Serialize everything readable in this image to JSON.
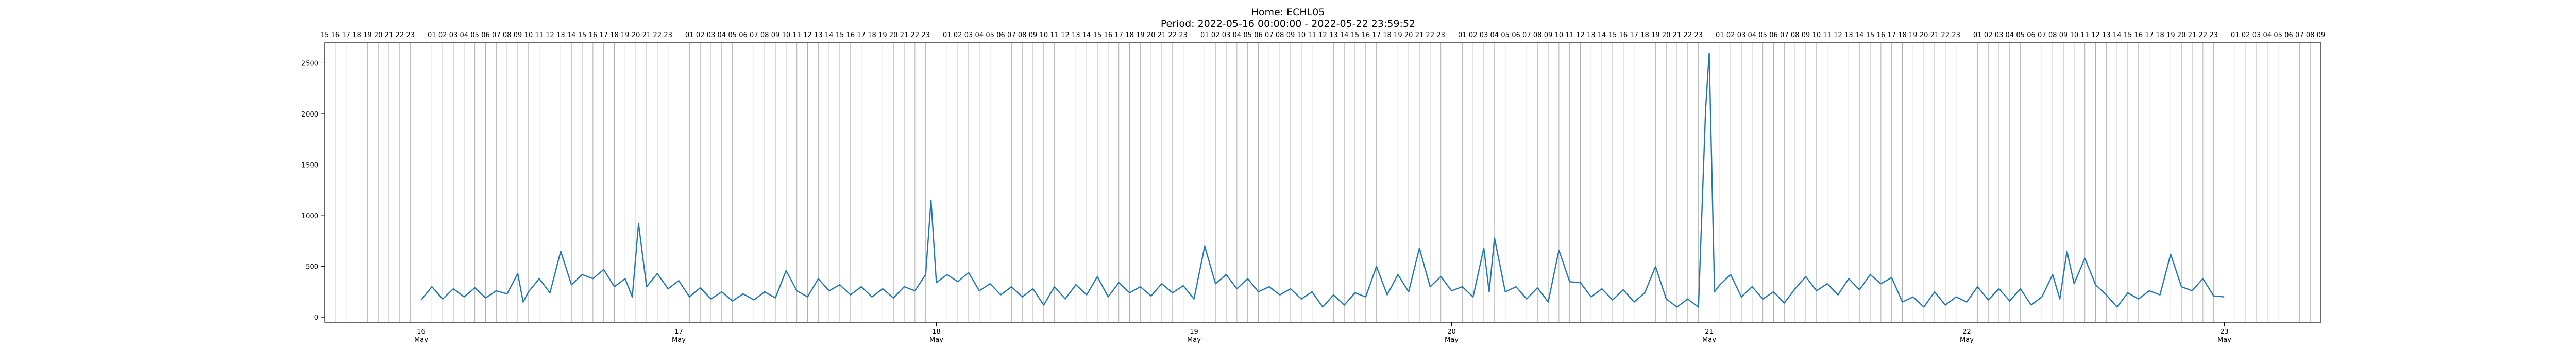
{
  "chart_data": {
    "type": "line",
    "title": "Home: ECHL05",
    "subtitle": "Period: 2022-05-16 00:00:00 - 2022-05-22 23:59:52",
    "xlabel": "",
    "ylabel": "",
    "ylim": [
      -50,
      2700
    ],
    "xlim": [
      "2022-05-15 15:00",
      "2022-05-23 09:00"
    ],
    "yticks": [
      0,
      500,
      1000,
      1500,
      2000,
      2500
    ],
    "xticks": [
      {
        "date": "2022-05-16",
        "day": "16",
        "month": "May"
      },
      {
        "date": "2022-05-17",
        "day": "17",
        "month": "May"
      },
      {
        "date": "2022-05-18",
        "day": "18",
        "month": "May"
      },
      {
        "date": "2022-05-19",
        "day": "19",
        "month": "May"
      },
      {
        "date": "2022-05-20",
        "day": "20",
        "month": "May"
      },
      {
        "date": "2022-05-21",
        "day": "21",
        "month": "May"
      },
      {
        "date": "2022-05-22",
        "day": "22",
        "month": "May"
      },
      {
        "date": "2022-05-23",
        "day": "23",
        "month": "May"
      }
    ],
    "top_axis": "hour of day, hourly gridlines",
    "grid": "vertical hourly lines",
    "line_color": "#1f77b4",
    "series": [
      {
        "values": [
          {
            "x": "2022-05-16 00:00",
            "y": 170
          },
          {
            "x": "2022-05-16 01:00",
            "y": 300
          },
          {
            "x": "2022-05-16 02:00",
            "y": 180
          },
          {
            "x": "2022-05-16 03:00",
            "y": 280
          },
          {
            "x": "2022-05-16 04:00",
            "y": 200
          },
          {
            "x": "2022-05-16 05:00",
            "y": 290
          },
          {
            "x": "2022-05-16 06:00",
            "y": 190
          },
          {
            "x": "2022-05-16 07:00",
            "y": 260
          },
          {
            "x": "2022-05-16 08:00",
            "y": 230
          },
          {
            "x": "2022-05-16 09:00",
            "y": 430
          },
          {
            "x": "2022-05-16 09:30",
            "y": 150
          },
          {
            "x": "2022-05-16 10:00",
            "y": 250
          },
          {
            "x": "2022-05-16 11:00",
            "y": 380
          },
          {
            "x": "2022-05-16 12:00",
            "y": 240
          },
          {
            "x": "2022-05-16 13:00",
            "y": 650
          },
          {
            "x": "2022-05-16 14:00",
            "y": 320
          },
          {
            "x": "2022-05-16 15:00",
            "y": 420
          },
          {
            "x": "2022-05-16 16:00",
            "y": 380
          },
          {
            "x": "2022-05-16 17:00",
            "y": 470
          },
          {
            "x": "2022-05-16 18:00",
            "y": 300
          },
          {
            "x": "2022-05-16 19:00",
            "y": 380
          },
          {
            "x": "2022-05-16 19:40",
            "y": 200
          },
          {
            "x": "2022-05-16 20:15",
            "y": 920
          },
          {
            "x": "2022-05-16 21:00",
            "y": 300
          },
          {
            "x": "2022-05-16 22:00",
            "y": 430
          },
          {
            "x": "2022-05-16 23:00",
            "y": 280
          },
          {
            "x": "2022-05-17 00:00",
            "y": 360
          },
          {
            "x": "2022-05-17 01:00",
            "y": 200
          },
          {
            "x": "2022-05-17 02:00",
            "y": 290
          },
          {
            "x": "2022-05-17 03:00",
            "y": 180
          },
          {
            "x": "2022-05-17 04:00",
            "y": 250
          },
          {
            "x": "2022-05-17 05:00",
            "y": 160
          },
          {
            "x": "2022-05-17 06:00",
            "y": 230
          },
          {
            "x": "2022-05-17 07:00",
            "y": 170
          },
          {
            "x": "2022-05-17 08:00",
            "y": 250
          },
          {
            "x": "2022-05-17 09:00",
            "y": 190
          },
          {
            "x": "2022-05-17 10:00",
            "y": 460
          },
          {
            "x": "2022-05-17 11:00",
            "y": 260
          },
          {
            "x": "2022-05-17 12:00",
            "y": 200
          },
          {
            "x": "2022-05-17 13:00",
            "y": 380
          },
          {
            "x": "2022-05-17 14:00",
            "y": 260
          },
          {
            "x": "2022-05-17 15:00",
            "y": 320
          },
          {
            "x": "2022-05-17 16:00",
            "y": 220
          },
          {
            "x": "2022-05-17 17:00",
            "y": 300
          },
          {
            "x": "2022-05-17 18:00",
            "y": 200
          },
          {
            "x": "2022-05-17 19:00",
            "y": 280
          },
          {
            "x": "2022-05-17 20:00",
            "y": 190
          },
          {
            "x": "2022-05-17 21:00",
            "y": 300
          },
          {
            "x": "2022-05-17 22:00",
            "y": 260
          },
          {
            "x": "2022-05-17 23:00",
            "y": 420
          },
          {
            "x": "2022-05-17 23:30",
            "y": 1150
          },
          {
            "x": "2022-05-18 00:00",
            "y": 340
          },
          {
            "x": "2022-05-18 01:00",
            "y": 420
          },
          {
            "x": "2022-05-18 02:00",
            "y": 350
          },
          {
            "x": "2022-05-18 03:00",
            "y": 440
          },
          {
            "x": "2022-05-18 04:00",
            "y": 260
          },
          {
            "x": "2022-05-18 05:00",
            "y": 330
          },
          {
            "x": "2022-05-18 06:00",
            "y": 220
          },
          {
            "x": "2022-05-18 07:00",
            "y": 300
          },
          {
            "x": "2022-05-18 08:00",
            "y": 200
          },
          {
            "x": "2022-05-18 09:00",
            "y": 280
          },
          {
            "x": "2022-05-18 10:00",
            "y": 120
          },
          {
            "x": "2022-05-18 11:00",
            "y": 300
          },
          {
            "x": "2022-05-18 12:00",
            "y": 180
          },
          {
            "x": "2022-05-18 13:00",
            "y": 320
          },
          {
            "x": "2022-05-18 14:00",
            "y": 220
          },
          {
            "x": "2022-05-18 15:00",
            "y": 400
          },
          {
            "x": "2022-05-18 16:00",
            "y": 200
          },
          {
            "x": "2022-05-18 17:00",
            "y": 340
          },
          {
            "x": "2022-05-18 18:00",
            "y": 240
          },
          {
            "x": "2022-05-18 19:00",
            "y": 300
          },
          {
            "x": "2022-05-18 20:00",
            "y": 210
          },
          {
            "x": "2022-05-18 21:00",
            "y": 330
          },
          {
            "x": "2022-05-18 22:00",
            "y": 240
          },
          {
            "x": "2022-05-18 23:00",
            "y": 310
          },
          {
            "x": "2022-05-19 00:00",
            "y": 180
          },
          {
            "x": "2022-05-19 01:00",
            "y": 700
          },
          {
            "x": "2022-05-19 02:00",
            "y": 330
          },
          {
            "x": "2022-05-19 03:00",
            "y": 420
          },
          {
            "x": "2022-05-19 04:00",
            "y": 280
          },
          {
            "x": "2022-05-19 05:00",
            "y": 380
          },
          {
            "x": "2022-05-19 06:00",
            "y": 250
          },
          {
            "x": "2022-05-19 07:00",
            "y": 300
          },
          {
            "x": "2022-05-19 08:00",
            "y": 220
          },
          {
            "x": "2022-05-19 09:00",
            "y": 280
          },
          {
            "x": "2022-05-19 10:00",
            "y": 180
          },
          {
            "x": "2022-05-19 11:00",
            "y": 250
          },
          {
            "x": "2022-05-19 12:00",
            "y": 100
          },
          {
            "x": "2022-05-19 13:00",
            "y": 220
          },
          {
            "x": "2022-05-19 14:00",
            "y": 120
          },
          {
            "x": "2022-05-19 15:00",
            "y": 240
          },
          {
            "x": "2022-05-19 16:00",
            "y": 200
          },
          {
            "x": "2022-05-19 17:00",
            "y": 500
          },
          {
            "x": "2022-05-19 18:00",
            "y": 220
          },
          {
            "x": "2022-05-19 19:00",
            "y": 420
          },
          {
            "x": "2022-05-19 20:00",
            "y": 250
          },
          {
            "x": "2022-05-19 21:00",
            "y": 680
          },
          {
            "x": "2022-05-19 22:00",
            "y": 300
          },
          {
            "x": "2022-05-19 23:00",
            "y": 400
          },
          {
            "x": "2022-05-20 00:00",
            "y": 260
          },
          {
            "x": "2022-05-20 01:00",
            "y": 300
          },
          {
            "x": "2022-05-20 02:00",
            "y": 200
          },
          {
            "x": "2022-05-20 03:00",
            "y": 680
          },
          {
            "x": "2022-05-20 03:30",
            "y": 250
          },
          {
            "x": "2022-05-20 04:00",
            "y": 780
          },
          {
            "x": "2022-05-20 05:00",
            "y": 250
          },
          {
            "x": "2022-05-20 06:00",
            "y": 300
          },
          {
            "x": "2022-05-20 07:00",
            "y": 180
          },
          {
            "x": "2022-05-20 08:00",
            "y": 290
          },
          {
            "x": "2022-05-20 09:00",
            "y": 150
          },
          {
            "x": "2022-05-20 10:00",
            "y": 660
          },
          {
            "x": "2022-05-20 11:00",
            "y": 350
          },
          {
            "x": "2022-05-20 12:00",
            "y": 340
          },
          {
            "x": "2022-05-20 13:00",
            "y": 200
          },
          {
            "x": "2022-05-20 14:00",
            "y": 280
          },
          {
            "x": "2022-05-20 15:00",
            "y": 170
          },
          {
            "x": "2022-05-20 16:00",
            "y": 270
          },
          {
            "x": "2022-05-20 17:00",
            "y": 150
          },
          {
            "x": "2022-05-20 18:00",
            "y": 240
          },
          {
            "x": "2022-05-20 19:00",
            "y": 500
          },
          {
            "x": "2022-05-20 20:00",
            "y": 180
          },
          {
            "x": "2022-05-20 21:00",
            "y": 100
          },
          {
            "x": "2022-05-20 22:00",
            "y": 180
          },
          {
            "x": "2022-05-20 23:00",
            "y": 100
          },
          {
            "x": "2022-05-20 23:40",
            "y": 2050
          },
          {
            "x": "2022-05-21 00:00",
            "y": 2600
          },
          {
            "x": "2022-05-21 00:30",
            "y": 250
          },
          {
            "x": "2022-05-21 01:00",
            "y": 320
          },
          {
            "x": "2022-05-21 02:00",
            "y": 420
          },
          {
            "x": "2022-05-21 03:00",
            "y": 200
          },
          {
            "x": "2022-05-21 04:00",
            "y": 300
          },
          {
            "x": "2022-05-21 05:00",
            "y": 180
          },
          {
            "x": "2022-05-21 06:00",
            "y": 250
          },
          {
            "x": "2022-05-21 07:00",
            "y": 140
          },
          {
            "x": "2022-05-21 08:00",
            "y": 280
          },
          {
            "x": "2022-05-21 09:00",
            "y": 400
          },
          {
            "x": "2022-05-21 10:00",
            "y": 260
          },
          {
            "x": "2022-05-21 11:00",
            "y": 330
          },
          {
            "x": "2022-05-21 12:00",
            "y": 220
          },
          {
            "x": "2022-05-21 13:00",
            "y": 380
          },
          {
            "x": "2022-05-21 14:00",
            "y": 270
          },
          {
            "x": "2022-05-21 15:00",
            "y": 420
          },
          {
            "x": "2022-05-21 16:00",
            "y": 330
          },
          {
            "x": "2022-05-21 17:00",
            "y": 390
          },
          {
            "x": "2022-05-21 18:00",
            "y": 150
          },
          {
            "x": "2022-05-21 19:00",
            "y": 200
          },
          {
            "x": "2022-05-21 20:00",
            "y": 100
          },
          {
            "x": "2022-05-21 21:00",
            "y": 250
          },
          {
            "x": "2022-05-21 22:00",
            "y": 120
          },
          {
            "x": "2022-05-21 23:00",
            "y": 200
          },
          {
            "x": "2022-05-22 00:00",
            "y": 150
          },
          {
            "x": "2022-05-22 01:00",
            "y": 300
          },
          {
            "x": "2022-05-22 02:00",
            "y": 170
          },
          {
            "x": "2022-05-22 03:00",
            "y": 280
          },
          {
            "x": "2022-05-22 04:00",
            "y": 160
          },
          {
            "x": "2022-05-22 05:00",
            "y": 280
          },
          {
            "x": "2022-05-22 06:00",
            "y": 120
          },
          {
            "x": "2022-05-22 07:00",
            "y": 200
          },
          {
            "x": "2022-05-22 08:00",
            "y": 420
          },
          {
            "x": "2022-05-22 08:40",
            "y": 180
          },
          {
            "x": "2022-05-22 09:20",
            "y": 650
          },
          {
            "x": "2022-05-22 10:00",
            "y": 330
          },
          {
            "x": "2022-05-22 11:00",
            "y": 580
          },
          {
            "x": "2022-05-22 12:00",
            "y": 320
          },
          {
            "x": "2022-05-22 13:00",
            "y": 220
          },
          {
            "x": "2022-05-22 14:00",
            "y": 100
          },
          {
            "x": "2022-05-22 15:00",
            "y": 240
          },
          {
            "x": "2022-05-22 16:00",
            "y": 180
          },
          {
            "x": "2022-05-22 17:00",
            "y": 260
          },
          {
            "x": "2022-05-22 18:00",
            "y": 220
          },
          {
            "x": "2022-05-22 19:00",
            "y": 620
          },
          {
            "x": "2022-05-22 20:00",
            "y": 300
          },
          {
            "x": "2022-05-22 21:00",
            "y": 260
          },
          {
            "x": "2022-05-22 22:00",
            "y": 380
          },
          {
            "x": "2022-05-22 23:00",
            "y": 210
          },
          {
            "x": "2022-05-22 23:59",
            "y": 200
          }
        ]
      }
    ]
  }
}
